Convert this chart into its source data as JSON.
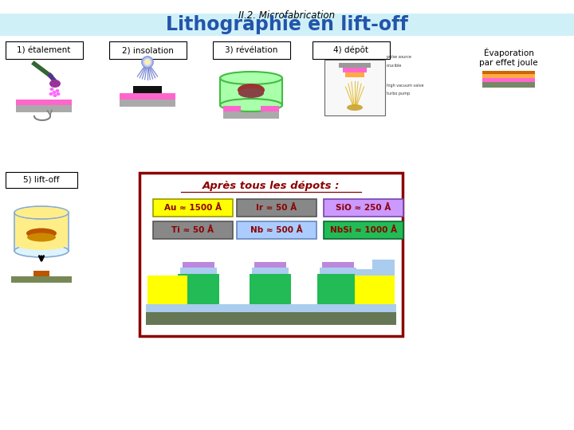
{
  "title_top": "II.2. Microfabrication",
  "title_main": "Lithographie en lift-off",
  "title_main_color": "#2255aa",
  "title_bg_color": "#d0f0f8",
  "step_labels": [
    "1) étalement",
    "2) insolation",
    "3) révélation",
    "4) dépôt"
  ],
  "step5_label": "5) lift-off",
  "evap_label": "Évaporation\npar effet joule",
  "box_color": "#8b0000",
  "apres_text": "Après tous les dépots :",
  "legend_items": [
    {
      "label": "Au ≈ 1500 Å",
      "bg": "#ffff00",
      "border": "#999900",
      "text": "#8b0000"
    },
    {
      "label": "Ir ≈ 50 Å",
      "bg": "#888888",
      "border": "#555555",
      "text": "#8b0000"
    },
    {
      "label": "SiO ≈ 250 Å",
      "bg": "#cc99ff",
      "border": "#7744aa",
      "text": "#8b0000"
    },
    {
      "label": "Ti ≈ 50 Å",
      "bg": "#888888",
      "border": "#555555",
      "text": "#8b0000"
    },
    {
      "label": "Nb ≈ 500 Å",
      "bg": "#aaccff",
      "border": "#6688bb",
      "text": "#8b0000"
    },
    {
      "label": "NbSi ≈ 1000 Å",
      "bg": "#22bb55",
      "border": "#116633",
      "text": "#8b0000"
    }
  ],
  "background_color": "#ffffff"
}
